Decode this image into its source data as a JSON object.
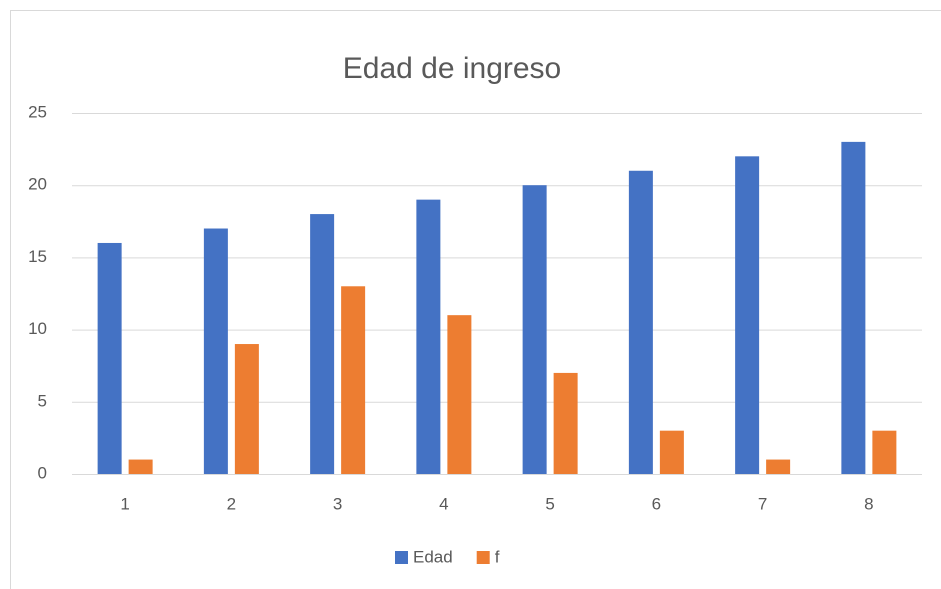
{
  "chart_data": {
    "type": "bar",
    "title": "Edad de ingreso",
    "categories": [
      "1",
      "2",
      "3",
      "4",
      "5",
      "6",
      "7",
      "8"
    ],
    "series": [
      {
        "name": "Edad",
        "color": "#4472c4",
        "values": [
          16,
          17,
          18,
          19,
          20,
          21,
          22,
          23
        ]
      },
      {
        "name": "f",
        "color": "#ed7d31",
        "values": [
          1,
          9,
          13,
          11,
          7,
          3,
          1,
          3
        ]
      }
    ],
    "ylim": [
      0,
      25
    ],
    "yticks": [
      0,
      5,
      10,
      15,
      20,
      25
    ],
    "grid": true,
    "legend": "bottom"
  }
}
